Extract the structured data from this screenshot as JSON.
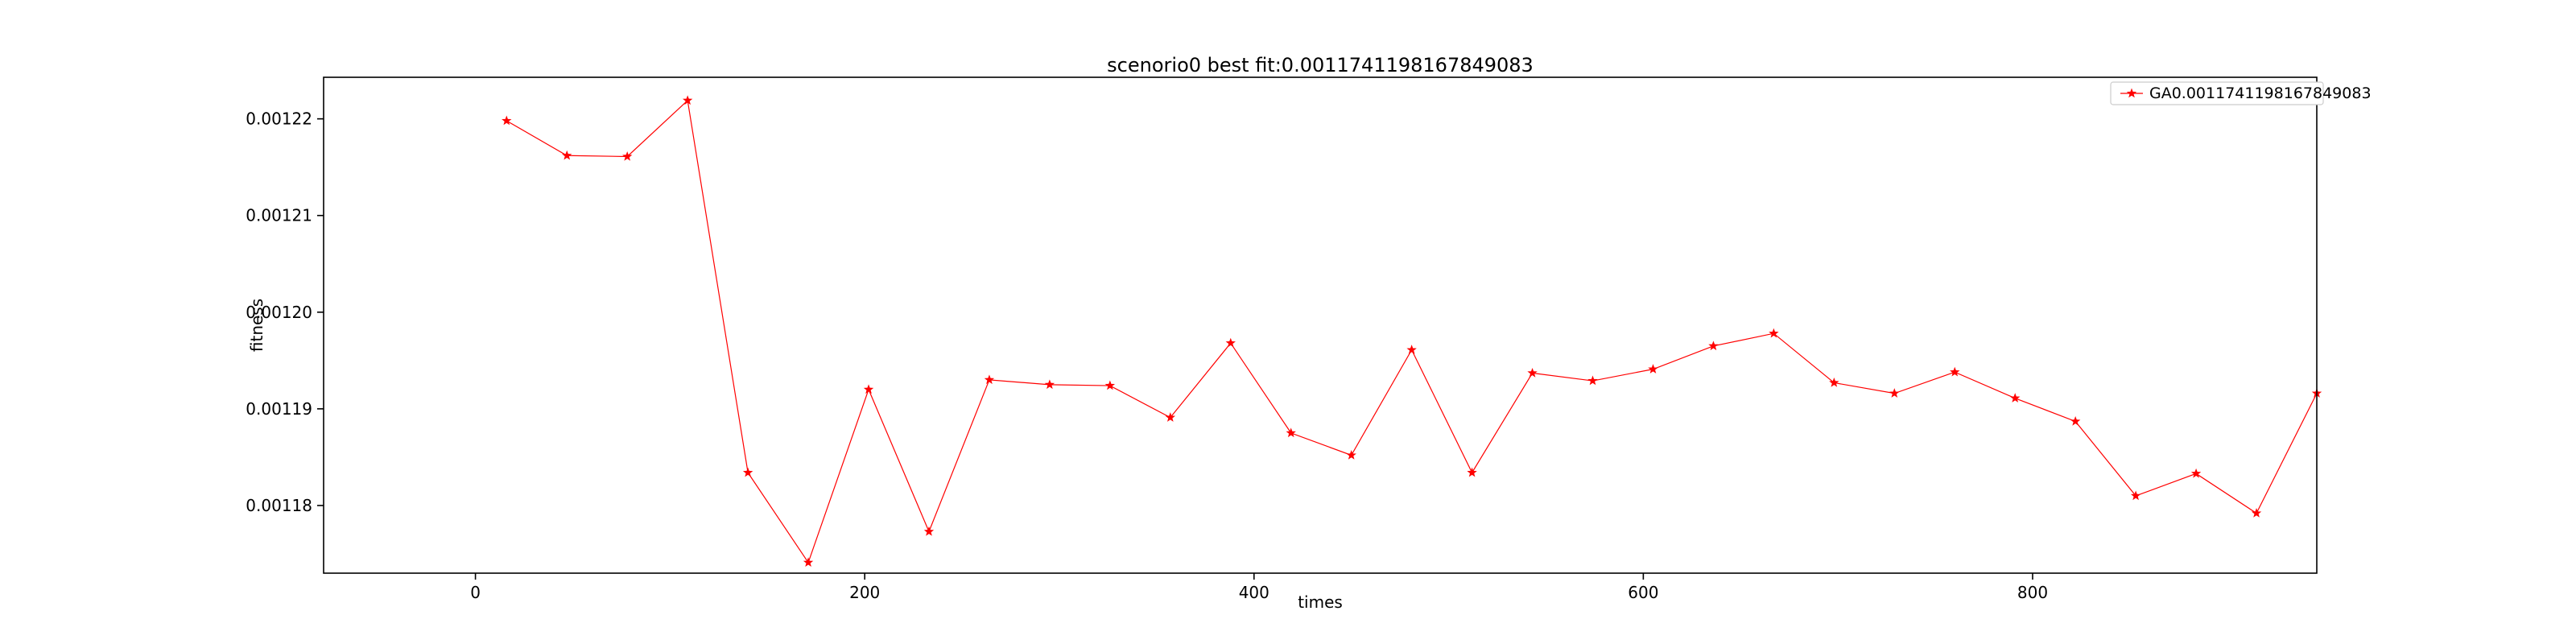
{
  "chart_data": {
    "type": "line",
    "title": "scenorio0 best fit:0.0011741198167849083",
    "xlabel": "times",
    "ylabel": "fitness",
    "xlim": [
      -78,
      946
    ],
    "ylim": [
      0.001173,
      0.0012243
    ],
    "x_ticks": [
      0,
      200,
      400,
      600,
      800
    ],
    "x_tick_labels": [
      "0",
      "200",
      "400",
      "600",
      "800"
    ],
    "y_ticks": [
      0.00118,
      0.00119,
      0.0012,
      0.00121,
      0.00122
    ],
    "y_tick_labels": [
      "0.00118",
      "0.00119",
      "0.00120",
      "0.00121",
      "0.00122"
    ],
    "grid": false,
    "legend_position": "top-right",
    "series": [
      {
        "name": "GA0.0011741198167849083",
        "color": "#ff0000",
        "marker": "star",
        "x": [
          16,
          47,
          78,
          109,
          140,
          171,
          202,
          233,
          264,
          295,
          326,
          357,
          388,
          419,
          450,
          481,
          512,
          543,
          574,
          605,
          636,
          667,
          698,
          729,
          760,
          791,
          822,
          853,
          884,
          915,
          946
        ],
        "values": [
          0.0012198,
          0.0012162,
          0.0012161,
          0.0012219,
          0.0011834,
          0.0011741,
          0.001192,
          0.0011773,
          0.001193,
          0.0011925,
          0.0011924,
          0.0011891,
          0.0011968,
          0.0011875,
          0.0011852,
          0.0011961,
          0.0011834,
          0.0011937,
          0.0011929,
          0.0011941,
          0.0011965,
          0.0011978,
          0.0011927,
          0.0011916,
          0.0011938,
          0.0011911,
          0.0011887,
          0.001181,
          0.0011833,
          0.0011792,
          0.0011916
        ]
      }
    ]
  }
}
